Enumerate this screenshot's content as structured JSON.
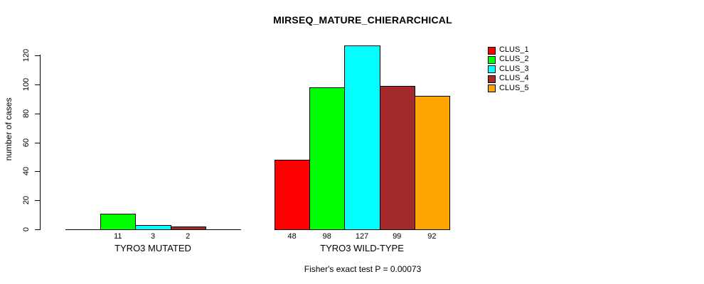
{
  "chart_data": {
    "type": "bar",
    "title": "MIRSEQ_MATURE_CHIERARCHICAL",
    "ylabel": "number of cases",
    "xlabel": "",
    "ylim": [
      0,
      120
    ],
    "yticks": [
      0,
      20,
      40,
      60,
      80,
      100,
      120
    ],
    "grid": false,
    "legend_position": "top-right",
    "bar_border_color": "#000000",
    "legend": [
      {
        "name": "CLUS_1",
        "color": "#FF0000"
      },
      {
        "name": "CLUS_2",
        "color": "#00FF00"
      },
      {
        "name": "CLUS_3",
        "color": "#00FFFF"
      },
      {
        "name": "CLUS_4",
        "color": "#A52A2A"
      },
      {
        "name": "CLUS_5",
        "color": "#FFA500"
      }
    ],
    "groups": [
      {
        "label": "TYRO3 MUTATED",
        "bars": [
          {
            "cluster": "CLUS_2",
            "slot": 1,
            "value": 11,
            "color": "#00FF00"
          },
          {
            "cluster": "CLUS_3",
            "slot": 2,
            "value": 3,
            "color": "#00FFFF"
          },
          {
            "cluster": "CLUS_4",
            "slot": 3,
            "value": 2,
            "color": "#A52A2A"
          }
        ]
      },
      {
        "label": "TYRO3 WILD-TYPE",
        "bars": [
          {
            "cluster": "CLUS_1",
            "slot": 0,
            "value": 48,
            "color": "#FF0000"
          },
          {
            "cluster": "CLUS_2",
            "slot": 1,
            "value": 98,
            "color": "#00FF00"
          },
          {
            "cluster": "CLUS_3",
            "slot": 2,
            "value": 127,
            "color": "#00FFFF"
          },
          {
            "cluster": "CLUS_4",
            "slot": 3,
            "value": 99,
            "color": "#A52A2A"
          },
          {
            "cluster": "CLUS_5",
            "slot": 4,
            "value": 92,
            "color": "#FFA500"
          }
        ]
      }
    ],
    "footer": "Fisher's exact test P = 0.00073"
  }
}
